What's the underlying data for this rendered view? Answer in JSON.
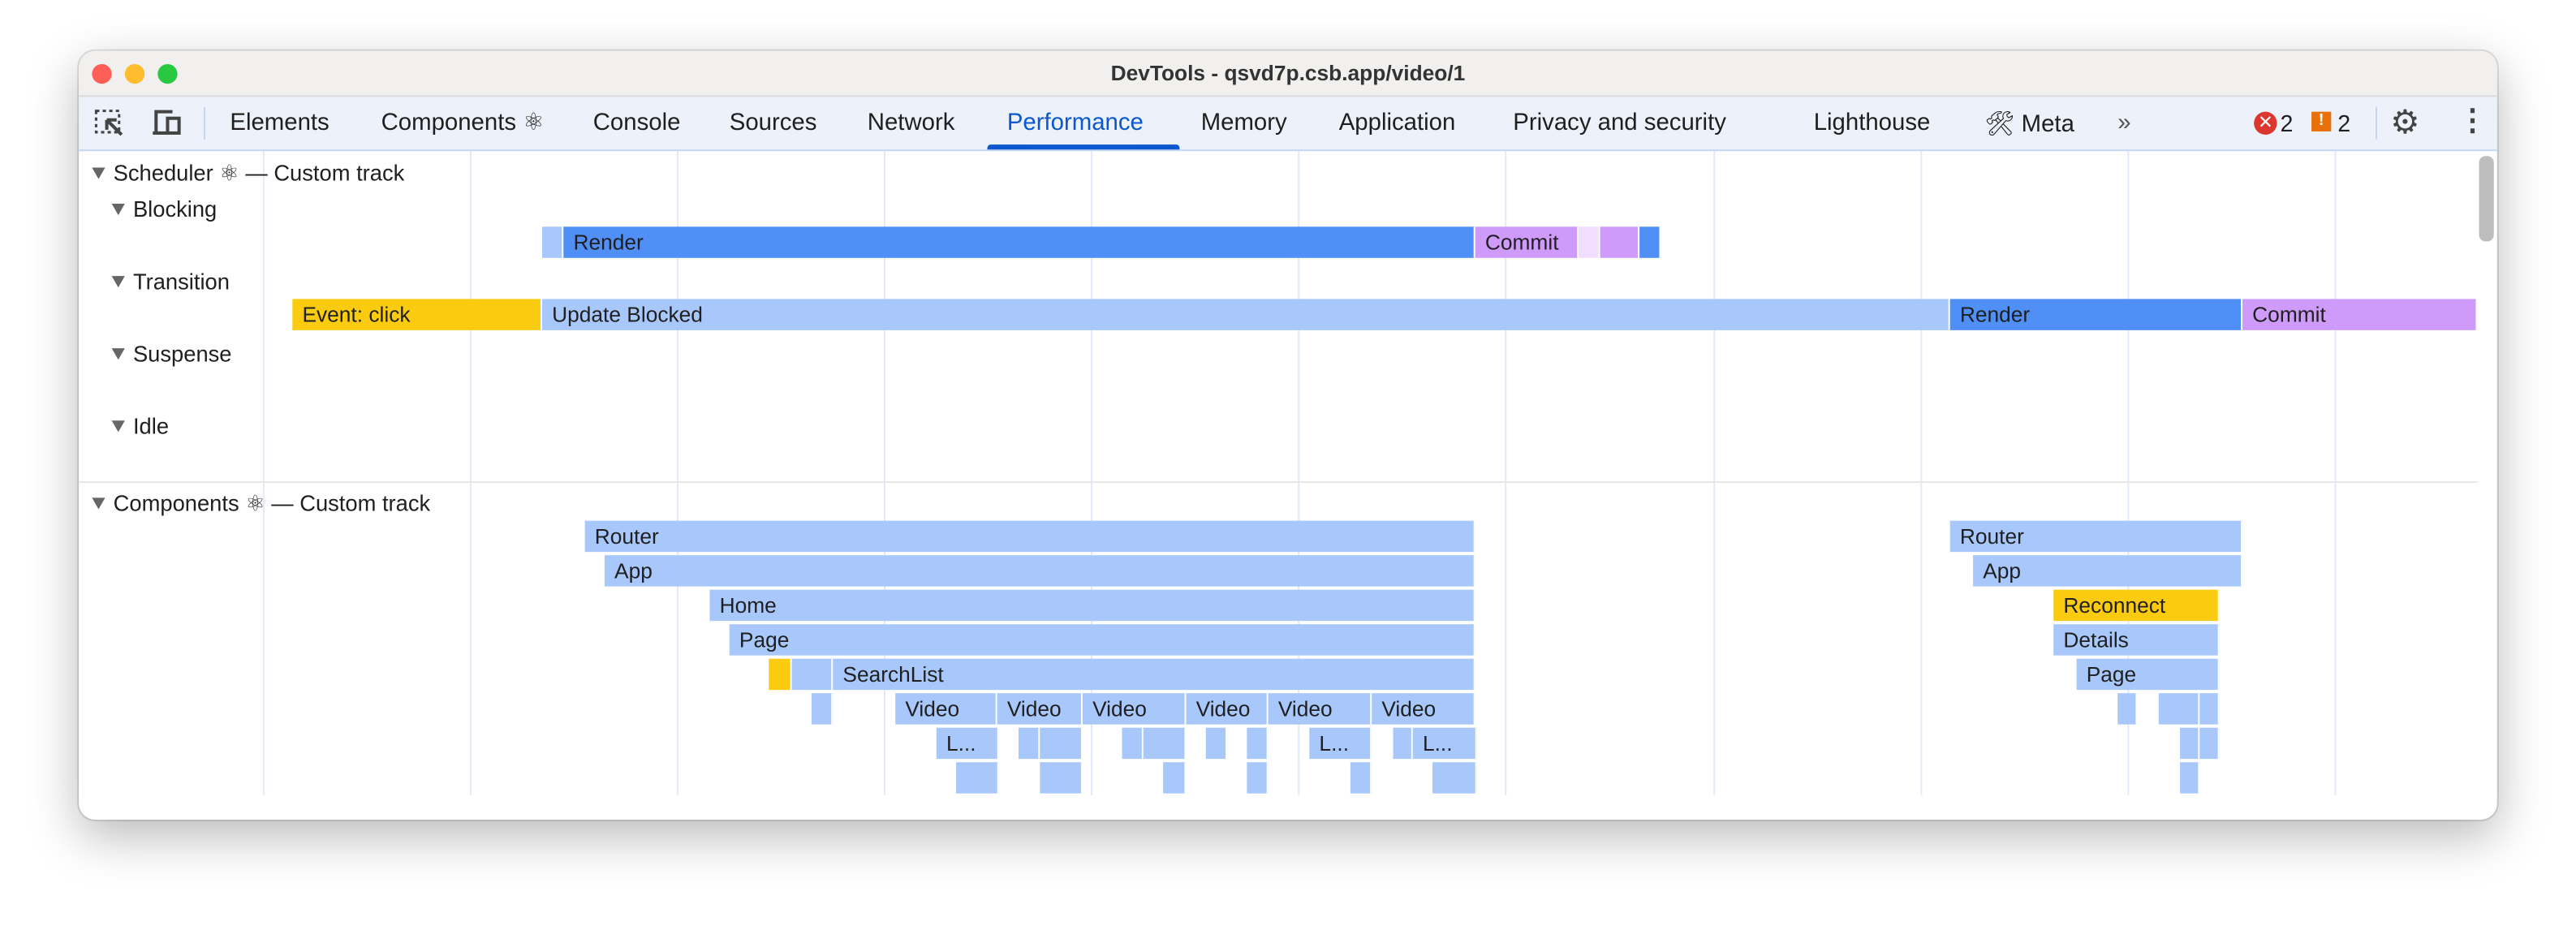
{
  "window": {
    "title": "DevTools - qsvd7p.csb.app/video/1"
  },
  "toolbar": {
    "tabs": [
      {
        "label": "Elements"
      },
      {
        "label": "Components ⚛"
      },
      {
        "label": "Console"
      },
      {
        "label": "Sources"
      },
      {
        "label": "Network"
      },
      {
        "label": "Performance",
        "active": true
      },
      {
        "label": "Memory"
      },
      {
        "label": "Application"
      },
      {
        "label": "Privacy and security"
      },
      {
        "label": "Lighthouse"
      },
      {
        "label": "🛠 Meta"
      }
    ],
    "more_icon": "chevrons-right-icon",
    "errors": "2",
    "warnings": "2",
    "icons": [
      "inspect-element-icon",
      "device-toolbar-icon",
      "gear-icon",
      "kebab-menu-icon"
    ]
  },
  "scheduler": {
    "title": "Scheduler ⚛ — Custom track",
    "tracks": [
      "Blocking",
      "Transition",
      "Suspense",
      "Idle"
    ],
    "bars": {
      "render": "Render",
      "commit": "Commit",
      "event_click": "Event: click",
      "update_blocked": "Update Blocked"
    }
  },
  "components": {
    "title": "Components ⚛ — Custom track",
    "labels": {
      "router": "Router",
      "app": "App",
      "home": "Home",
      "page": "Page",
      "searchlist": "SearchList",
      "video": "Video",
      "l_trunc": "L...",
      "reconnect": "Reconnect",
      "details": "Details"
    }
  },
  "colors": {
    "light": "#a8c7fa",
    "blue": "#4f8ff6",
    "purple": "#cf9bfa",
    "pink": "#f1ddfd",
    "yellow": "#fbcb10",
    "accent": "#0b57d0"
  }
}
